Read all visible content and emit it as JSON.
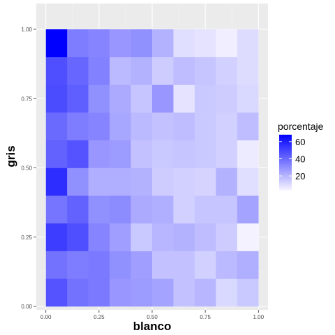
{
  "chart_data": {
    "type": "heatmap",
    "xlabel": "blanco",
    "ylabel": "gris",
    "x_ticks": [
      "0.00",
      "0.25",
      "0.50",
      "0.75",
      "1.00"
    ],
    "y_ticks": [
      "0.00",
      "0.25",
      "0.50",
      "0.75",
      "1.00"
    ],
    "xlim": [
      0,
      1
    ],
    "ylim": [
      0,
      1
    ],
    "x_bins": [
      0.05,
      0.15,
      0.25,
      0.35,
      0.45,
      0.55,
      0.65,
      0.75,
      0.85,
      0.95
    ],
    "y_bins": [
      0.05,
      0.15,
      0.25,
      0.35,
      0.45,
      0.55,
      0.65,
      0.75,
      0.85,
      0.95
    ],
    "values": [
      [
        46,
        38,
        36,
        28,
        27,
        25,
        17,
        20,
        11,
        15
      ],
      [
        38,
        35,
        36,
        30,
        26,
        17,
        17,
        13,
        19,
        22
      ],
      [
        52,
        47,
        33,
        26,
        15,
        20,
        21,
        18,
        14,
        4
      ],
      [
        37,
        42,
        30,
        31,
        23,
        22,
        13,
        16,
        16,
        25
      ],
      [
        56,
        30,
        22,
        22,
        21,
        14,
        13,
        12,
        21,
        9
      ],
      [
        42,
        46,
        28,
        27,
        17,
        15,
        16,
        15,
        13,
        6
      ],
      [
        40,
        35,
        33,
        24,
        19,
        17,
        18,
        15,
        13,
        18
      ],
      [
        48,
        43,
        30,
        23,
        16,
        28,
        8,
        15,
        14,
        11
      ],
      [
        47,
        41,
        34,
        19,
        21,
        14,
        18,
        16,
        13,
        10
      ],
      [
        68,
        35,
        33,
        28,
        30,
        21,
        9,
        8,
        5,
        10
      ]
    ],
    "legend": {
      "title": "porcentaje",
      "labels": [
        "20",
        "40",
        "60"
      ],
      "label_values": [
        20,
        40,
        60
      ],
      "min": 3,
      "max": 68,
      "low_color": "#f8f6ff",
      "high_color": "#0000ff",
      "placement": "right"
    },
    "panel_color": "#ebebeb",
    "grid": true
  }
}
